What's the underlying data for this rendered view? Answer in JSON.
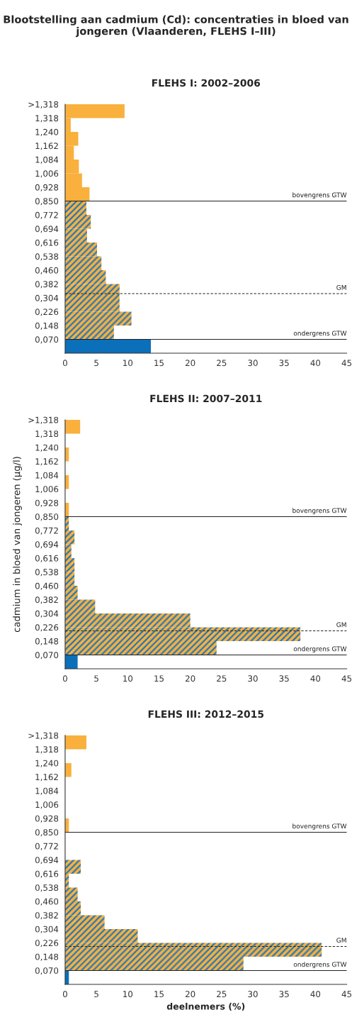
{
  "chart_data": [
    {
      "type": "histogram",
      "orientation": "horizontal",
      "title": "Blootstelling aan cadmium (Cd): concentraties in bloed van jongeren (Vlaanderen, FLEHS I–III)",
      "subtitle": "FLEHS I: 2002–2006",
      "bins": [
        -0.008,
        0.07,
        0.148,
        0.226,
        0.304,
        0.382,
        0.46,
        0.538,
        0.616,
        0.694,
        0.772,
        0.85,
        0.928,
        1.006,
        1.084,
        1.162,
        1.24,
        1.318,
        1.396
      ],
      "values": [
        13.7,
        7.8,
        10.6,
        8.7,
        8.7,
        6.5,
        5.8,
        5.1,
        3.5,
        4.1,
        3.4,
        3.9,
        2.7,
        2.2,
        1.4,
        2.1,
        0.9,
        9.5
      ],
      "colors": [
        "#0b6fba",
        "#f9b03c",
        "#f9b03c",
        "#f9b03c",
        "#f9b03c",
        "#f9b03c",
        "#f9b03c",
        "#f9b03c",
        "#f9b03c",
        "#f9b03c",
        "#f9b03c",
        "#f9b03c",
        "#f9b03c",
        "#f9b03c",
        "#f9b03c",
        "#f9b03c",
        "#f9b03c",
        "#f9b03c"
      ],
      "xlim": [
        0,
        45
      ],
      "xticks": [
        0,
        5,
        10,
        15,
        20,
        25,
        30,
        35,
        40,
        45
      ],
      "ylim": [
        -0.008,
        1.396
      ],
      "yticks": [
        {
          "value": 0.07,
          "label": "0,070"
        },
        {
          "value": 0.148,
          "label": "0,148"
        },
        {
          "value": 0.226,
          "label": "0,226"
        },
        {
          "value": 0.304,
          "label": "0,304"
        },
        {
          "value": 0.382,
          "label": "0,382"
        },
        {
          "value": 0.46,
          "label": "0,460"
        },
        {
          "value": 0.538,
          "label": "0,538"
        },
        {
          "value": 0.616,
          "label": "0,616"
        },
        {
          "value": 0.694,
          "label": "0,694"
        },
        {
          "value": 0.772,
          "label": "0,772"
        },
        {
          "value": 0.85,
          "label": "0,850"
        },
        {
          "value": 0.928,
          "label": "0,928"
        },
        {
          "value": 1.006,
          "label": "1,006"
        },
        {
          "value": 1.084,
          "label": "1,084"
        },
        {
          "value": 1.162,
          "label": "1,162"
        },
        {
          "value": 1.24,
          "label": "1,240"
        },
        {
          "value": 1.318,
          "label": "1,318"
        },
        {
          "value": 1.396,
          "label": ">1,318"
        }
      ],
      "ref_lines": [
        {
          "axis": "y",
          "value": 0.85,
          "label": "bovengrens GTW",
          "line_style": "solid",
          "color": "#222222"
        },
        {
          "axis": "y",
          "value": 0.328,
          "label": "GM",
          "line_style": "dashed",
          "color": "#222222"
        },
        {
          "axis": "y",
          "value": 0.07,
          "label": "ondergrens GTW",
          "line_style": "solid",
          "color": "#222222"
        }
      ]
    },
    {
      "type": "histogram",
      "orientation": "horizontal",
      "title": "FLEHS II: 2007–2011",
      "ylabel": "cadmium in bloed van jongeren (µg/l)",
      "bins": [
        -0.008,
        0.07,
        0.148,
        0.226,
        0.304,
        0.382,
        0.46,
        0.538,
        0.616,
        0.694,
        0.772,
        0.85,
        0.928,
        1.006,
        1.084,
        1.162,
        1.24,
        1.318,
        1.396
      ],
      "values": [
        2.0,
        24.2,
        37.6,
        20.0,
        4.8,
        2.0,
        1.5,
        1.5,
        1.0,
        1.5,
        0.6,
        0.6,
        0,
        0.6,
        0,
        0.6,
        0,
        2.4
      ],
      "colors": [
        "#0b6fba",
        "#f9b03c",
        "#f9b03c",
        "#f9b03c",
        "#f9b03c",
        "#f9b03c",
        "#f9b03c",
        "#f9b03c",
        "#f9b03c",
        "#f9b03c",
        "#f9b03c",
        "#f9b03c",
        "#f9b03c",
        "#f9b03c",
        "#f9b03c",
        "#f9b03c",
        "#f9b03c",
        "#f9b03c"
      ],
      "xlim": [
        0,
        45
      ],
      "xticks": [
        0,
        5,
        10,
        15,
        20,
        25,
        30,
        35,
        40,
        45
      ],
      "ylim": [
        -0.008,
        1.396
      ],
      "yticks": [
        {
          "value": 0.07,
          "label": "0,070"
        },
        {
          "value": 0.148,
          "label": "0,148"
        },
        {
          "value": 0.226,
          "label": "0,226"
        },
        {
          "value": 0.304,
          "label": "0,304"
        },
        {
          "value": 0.382,
          "label": "0,382"
        },
        {
          "value": 0.46,
          "label": "0,460"
        },
        {
          "value": 0.538,
          "label": "0,538"
        },
        {
          "value": 0.616,
          "label": "0,616"
        },
        {
          "value": 0.694,
          "label": "0,694"
        },
        {
          "value": 0.772,
          "label": "0,772"
        },
        {
          "value": 0.85,
          "label": "0,850"
        },
        {
          "value": 0.928,
          "label": "0,928"
        },
        {
          "value": 1.006,
          "label": "1,006"
        },
        {
          "value": 1.084,
          "label": "1,084"
        },
        {
          "value": 1.162,
          "label": "1,162"
        },
        {
          "value": 1.24,
          "label": "1,240"
        },
        {
          "value": 1.318,
          "label": "1,318"
        },
        {
          "value": 1.396,
          "label": ">1,318"
        }
      ],
      "ref_lines": [
        {
          "axis": "y",
          "value": 0.85,
          "label": "bovengrens GTW",
          "line_style": "solid",
          "color": "#222222"
        },
        {
          "axis": "y",
          "value": 0.206,
          "label": "GM",
          "line_style": "dashed",
          "color": "#222222"
        },
        {
          "axis": "y",
          "value": 0.07,
          "label": "ondergrens GTW",
          "line_style": "solid",
          "color": "#222222"
        }
      ]
    },
    {
      "type": "histogram",
      "orientation": "horizontal",
      "title": "FLEHS III: 2012–2015",
      "xlabel": "deelnemers (%)",
      "bins": [
        -0.008,
        0.07,
        0.148,
        0.226,
        0.304,
        0.382,
        0.46,
        0.538,
        0.616,
        0.694,
        0.772,
        0.85,
        0.928,
        1.006,
        1.084,
        1.162,
        1.24,
        1.318,
        1.396
      ],
      "values": [
        0.6,
        28.5,
        41.0,
        11.6,
        6.3,
        2.5,
        2.0,
        0.6,
        2.5,
        0,
        0,
        0.6,
        0,
        0,
        0,
        1.0,
        0,
        3.4
      ],
      "colors": [
        "#0b6fba",
        "#f9b03c",
        "#f9b03c",
        "#f9b03c",
        "#f9b03c",
        "#f9b03c",
        "#f9b03c",
        "#f9b03c",
        "#f9b03c",
        "#f9b03c",
        "#f9b03c",
        "#f9b03c",
        "#f9b03c",
        "#f9b03c",
        "#f9b03c",
        "#f9b03c",
        "#f9b03c",
        "#f9b03c"
      ],
      "xlim": [
        0,
        45
      ],
      "xticks": [
        0,
        5,
        10,
        15,
        20,
        25,
        30,
        35,
        40,
        45
      ],
      "ylim": [
        -0.008,
        1.396
      ],
      "yticks": [
        {
          "value": 0.07,
          "label": "0,070"
        },
        {
          "value": 0.148,
          "label": "0,148"
        },
        {
          "value": 0.226,
          "label": "0,226"
        },
        {
          "value": 0.304,
          "label": "0,304"
        },
        {
          "value": 0.382,
          "label": "0,382"
        },
        {
          "value": 0.46,
          "label": "0,460"
        },
        {
          "value": 0.538,
          "label": "0,538"
        },
        {
          "value": 0.616,
          "label": "0,616"
        },
        {
          "value": 0.694,
          "label": "0,694"
        },
        {
          "value": 0.772,
          "label": "0,772"
        },
        {
          "value": 0.85,
          "label": "0,850"
        },
        {
          "value": 0.928,
          "label": "0,928"
        },
        {
          "value": 1.006,
          "label": "1,006"
        },
        {
          "value": 1.084,
          "label": "1,084"
        },
        {
          "value": 1.162,
          "label": "1,162"
        },
        {
          "value": 1.24,
          "label": "1,240"
        },
        {
          "value": 1.318,
          "label": "1,318"
        },
        {
          "value": 1.396,
          "label": ">1,318"
        }
      ],
      "ref_lines": [
        {
          "axis": "y",
          "value": 0.85,
          "label": "bovengrens GTW",
          "line_style": "solid",
          "color": "#222222"
        },
        {
          "axis": "y",
          "value": 0.206,
          "label": "GM",
          "line_style": "dashed",
          "color": "#222222"
        },
        {
          "axis": "y",
          "value": 0.07,
          "label": "ondergrens GTW",
          "line_style": "solid",
          "color": "#222222"
        }
      ]
    }
  ]
}
